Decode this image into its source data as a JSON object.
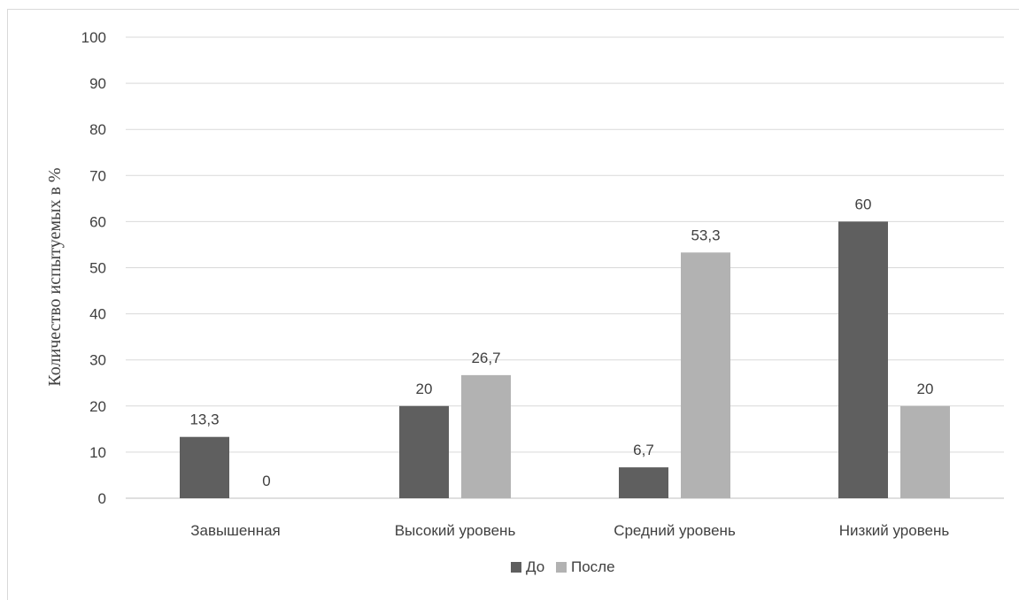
{
  "chart_data": {
    "type": "bar",
    "categories": [
      "Завышенная",
      "Высокий уровень",
      "Средний уровень",
      "Низкий уровень"
    ],
    "series": [
      {
        "name": "До",
        "values": [
          13.3,
          20,
          6.7,
          60
        ],
        "labels": [
          "13,3",
          "20",
          "6,7",
          "60"
        ],
        "color": "#5f5f5f"
      },
      {
        "name": "После",
        "values": [
          0,
          26.7,
          53.3,
          20
        ],
        "labels": [
          "0",
          "26,7",
          "53,3",
          "20"
        ],
        "color": "#b2b2b2"
      }
    ],
    "title": "",
    "xlabel": "",
    "ylabel": "Количество испытуемых в %",
    "ylim": [
      0,
      100
    ],
    "yticks": [
      0,
      10,
      20,
      30,
      40,
      50,
      60,
      70,
      80,
      90,
      100
    ],
    "grid": true,
    "legend_position": "bottom"
  }
}
